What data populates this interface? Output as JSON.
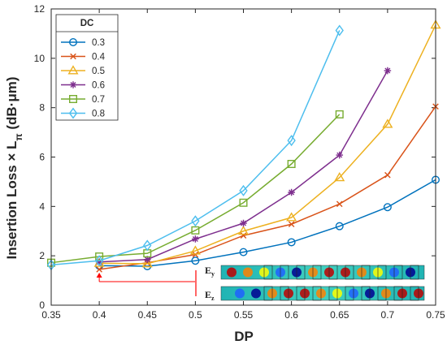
{
  "chart_data": {
    "type": "line",
    "xlabel": "DP",
    "ylabel": "Insertion Loss × L",
    "ylabel_sub": "π",
    "ylabel_unit": " (dB·μm)",
    "xlim": [
      0.35,
      0.75
    ],
    "ylim": [
      0,
      12
    ],
    "xticks": [
      "0.35",
      "0.4",
      "0.45",
      "0.5",
      "0.55",
      "0.6",
      "0.65",
      "0.7",
      "0.75"
    ],
    "yticks": [
      "0",
      "2",
      "4",
      "6",
      "8",
      "10",
      "12"
    ],
    "legend_title": "DC",
    "legend_position": "top-left",
    "series": [
      {
        "name": "0.3",
        "color": "#0072BD",
        "marker": "circle",
        "x": [
          0.4,
          0.45,
          0.5,
          0.55,
          0.6,
          0.65,
          0.7,
          0.75
        ],
        "y": [
          1.6,
          1.58,
          1.8,
          2.15,
          2.55,
          3.2,
          3.97,
          5.08
        ]
      },
      {
        "name": "0.4",
        "color": "#D95319",
        "marker": "x",
        "x": [
          0.4,
          0.45,
          0.5,
          0.55,
          0.6,
          0.65,
          0.7,
          0.75
        ],
        "y": [
          1.45,
          1.72,
          2.05,
          2.82,
          3.28,
          4.1,
          5.27,
          8.05
        ]
      },
      {
        "name": "0.5",
        "color": "#EDB120",
        "marker": "triangle",
        "x": [
          0.4,
          0.45,
          0.5,
          0.55,
          0.6,
          0.65,
          0.7,
          0.75
        ],
        "y": [
          1.7,
          1.68,
          2.2,
          3.0,
          3.55,
          5.17,
          7.33,
          11.35
        ]
      },
      {
        "name": "0.6",
        "color": "#7E2F8E",
        "marker": "asterisk",
        "x": [
          0.4,
          0.45,
          0.5,
          0.55,
          0.6,
          0.65,
          0.7
        ],
        "y": [
          1.75,
          1.85,
          2.68,
          3.32,
          4.57,
          6.08,
          9.5
        ]
      },
      {
        "name": "0.7",
        "color": "#77AC30",
        "marker": "square",
        "x": [
          0.35,
          0.4,
          0.45,
          0.5,
          0.55,
          0.6,
          0.65
        ],
        "y": [
          1.72,
          1.97,
          2.1,
          3.03,
          4.15,
          5.72,
          7.73
        ]
      },
      {
        "name": "0.8",
        "color": "#4DBEEE",
        "marker": "diamond",
        "x": [
          0.35,
          0.4,
          0.45,
          0.5,
          0.55,
          0.6,
          0.65
        ],
        "y": [
          1.63,
          1.8,
          2.42,
          3.41,
          4.64,
          6.67,
          11.13
        ]
      }
    ],
    "annotations": {
      "field_labels": [
        "E",
        "E"
      ],
      "field_subscripts": [
        "y",
        "z"
      ],
      "arrow_x": 0.4,
      "arrow_y": 1.6,
      "arrow_color": "#ff0000"
    }
  }
}
